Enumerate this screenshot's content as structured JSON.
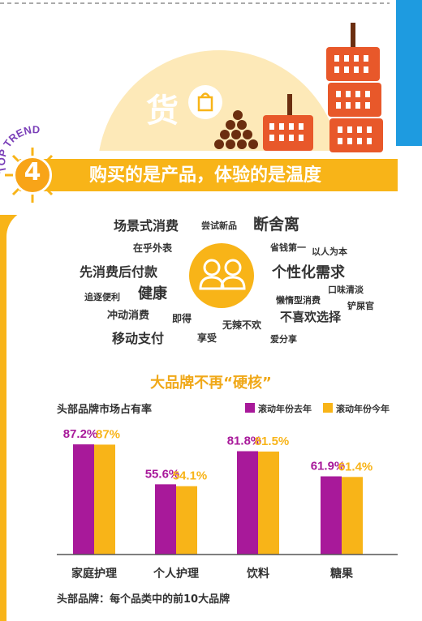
{
  "hero": {
    "title": "货"
  },
  "badge": {
    "num": "4",
    "arc_text": "TOP TREND"
  },
  "banner": {
    "title": "购买的是产品，体验的是温度"
  },
  "word_cloud": [
    {
      "text": "场景式消费",
      "size": 16
    },
    {
      "text": "尝试新品",
      "size": 11
    },
    {
      "text": "断舍离",
      "size": 19
    },
    {
      "text": "在乎外表",
      "size": 12
    },
    {
      "text": "省钱第一",
      "size": 11
    },
    {
      "text": "以人为本",
      "size": 11
    },
    {
      "text": "先消费后付款",
      "size": 16
    },
    {
      "text": "个性化需求",
      "size": 18
    },
    {
      "text": "健康",
      "size": 18
    },
    {
      "text": "口味清淡",
      "size": 11
    },
    {
      "text": "追逐便利",
      "size": 11
    },
    {
      "text": "懒惰型消费",
      "size": 11
    },
    {
      "text": "铲屎官",
      "size": 11
    },
    {
      "text": "冲动消费",
      "size": 13
    },
    {
      "text": "即得",
      "size": 12
    },
    {
      "text": "不喜欢选择",
      "size": 15
    },
    {
      "text": "移动支付",
      "size": 16
    },
    {
      "text": "无辣不欢",
      "size": 12
    },
    {
      "text": "享受",
      "size": 12
    },
    {
      "text": "爱分享",
      "size": 11
    }
  ],
  "chart_data": {
    "type": "bar",
    "title": "大品牌不再“硬核”",
    "subtitle": "头部品牌市场占有率",
    "categories": [
      "家庭护理",
      "个人护理",
      "饮料",
      "糖果"
    ],
    "series": [
      {
        "name": "滚动年份去年",
        "values": [
          87.2,
          55.6,
          81.8,
          61.9
        ],
        "labels": [
          "87.2%",
          "55.6%",
          "81.8%",
          "61.9%"
        ],
        "color": "#a8199a"
      },
      {
        "name": "滚动年份今年",
        "values": [
          87.0,
          54.1,
          81.5,
          61.4
        ],
        "labels": [
          "87%",
          "54.1%",
          "81.5%",
          "61.4%"
        ],
        "color": "#f8b418"
      }
    ],
    "ylim": [
      0,
      100
    ],
    "grid": false,
    "legend": "top-right"
  },
  "footnote": "头部品牌：每个品类中的前10大品牌",
  "colors": {
    "accent": "#f8b418",
    "purple": "#a8199a",
    "blue": "#1e9be0",
    "basket": "#e8582a"
  }
}
